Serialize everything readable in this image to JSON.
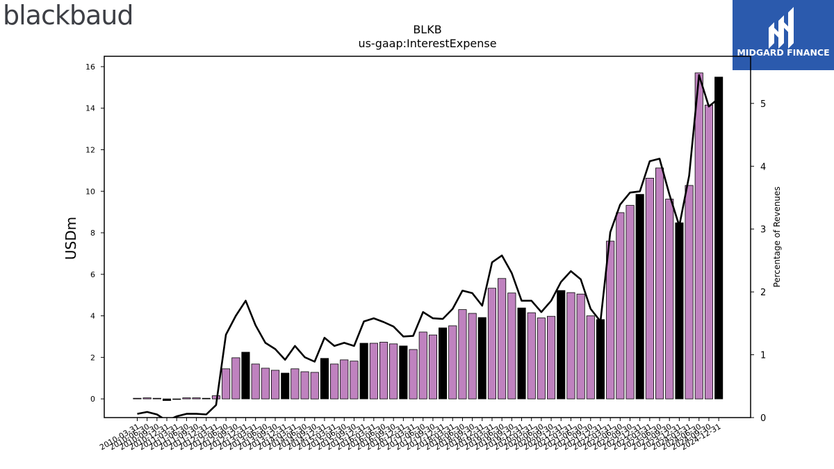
{
  "header": {
    "left_logo_text": "blackbaud",
    "right_logo_text": "MIDGARD FINANCE",
    "brand_color": "#2b5aad"
  },
  "chart_data": {
    "type": "bar",
    "title": "BLKB",
    "subtitle": "us-gaap:InterestExpense",
    "ylabel": "USDm",
    "y2label": "Percentage of Revenues",
    "ylim": [
      -0.9,
      16.5
    ],
    "y2lim": [
      0,
      5.75
    ],
    "yticks": [
      0,
      2,
      4,
      6,
      8,
      10,
      12,
      14,
      16
    ],
    "y2ticks": [
      0,
      1,
      2,
      3,
      4,
      5
    ],
    "colors": {
      "quarter_bar": "#bf82bf",
      "annual_bar": "#000000",
      "line": "#000000"
    },
    "categories": [
      "2010-03-31",
      "2010-06-30",
      "2010-09-30",
      "2010-12-31",
      "2011-03-31",
      "2011-06-30",
      "2011-09-30",
      "2011-12-31",
      "2012-03-31",
      "2012-06-30",
      "2012-09-30",
      "2012-12-31",
      "2013-03-31",
      "2013-06-30",
      "2013-09-30",
      "2013-12-31",
      "2014-03-31",
      "2014-06-30",
      "2014-09-30",
      "2014-12-31",
      "2015-03-31",
      "2015-06-30",
      "2015-09-30",
      "2015-12-31",
      "2016-03-31",
      "2016-06-30",
      "2016-09-30",
      "2016-12-31",
      "2017-03-31",
      "2017-06-30",
      "2017-09-30",
      "2017-12-31",
      "2018-03-31",
      "2018-06-30",
      "2018-09-30",
      "2018-12-31",
      "2019-03-31",
      "2019-06-30",
      "2019-09-30",
      "2019-12-31",
      "2020-03-31",
      "2020-06-30",
      "2020-09-30",
      "2020-12-31",
      "2021-03-31",
      "2021-06-30",
      "2021-09-30",
      "2021-12-31",
      "2022-03-31",
      "2022-06-30",
      "2022-09-30",
      "2022-12-31",
      "2023-03-31",
      "2023-06-30",
      "2023-09-30",
      "2023-12-31",
      "2024-03-31",
      "2024-06-30",
      "2024-09-30",
      "2024-12-31"
    ],
    "series": [
      {
        "kind": "bar",
        "axis": "left",
        "values": [
          0.03,
          0.05,
          0.03,
          -0.08,
          -0.02,
          0.05,
          0.05,
          0.03,
          0.15,
          1.45,
          1.98,
          2.25,
          1.68,
          1.48,
          1.38,
          1.24,
          1.45,
          1.31,
          1.28,
          1.95,
          1.68,
          1.88,
          1.82,
          2.68,
          2.68,
          2.73,
          2.65,
          2.55,
          2.38,
          3.22,
          3.08,
          3.42,
          3.52,
          4.3,
          4.12,
          3.92,
          5.33,
          5.8,
          5.1,
          4.38,
          4.15,
          3.9,
          3.98,
          5.22,
          5.12,
          5.05,
          4.0,
          3.82,
          7.6,
          8.97,
          9.32,
          9.85,
          10.63,
          11.12,
          9.62,
          8.48,
          10.28,
          15.7,
          14.15,
          15.5
        ],
        "annual": [
          false,
          false,
          false,
          true,
          false,
          false,
          false,
          true,
          false,
          false,
          false,
          true,
          false,
          false,
          false,
          true,
          false,
          false,
          false,
          true,
          false,
          false,
          false,
          true,
          false,
          false,
          false,
          true,
          false,
          false,
          false,
          true,
          false,
          false,
          false,
          true,
          false,
          false,
          false,
          true,
          false,
          false,
          false,
          true,
          false,
          false,
          false,
          true,
          false,
          false,
          false,
          true,
          false,
          false,
          false,
          true,
          false,
          false,
          false,
          true
        ]
      },
      {
        "kind": "line",
        "axis": "right",
        "values": [
          0.06,
          0.09,
          0.05,
          -0.05,
          0.02,
          0.06,
          0.06,
          0.05,
          0.2,
          1.32,
          1.62,
          1.86,
          1.47,
          1.19,
          1.09,
          0.92,
          1.14,
          0.96,
          0.89,
          1.27,
          1.14,
          1.19,
          1.14,
          1.53,
          1.58,
          1.52,
          1.45,
          1.29,
          1.3,
          1.68,
          1.58,
          1.57,
          1.73,
          2.02,
          1.98,
          1.78,
          2.47,
          2.58,
          2.3,
          1.86,
          1.86,
          1.68,
          1.86,
          2.16,
          2.33,
          2.2,
          1.73,
          1.53,
          2.95,
          3.39,
          3.58,
          3.6,
          4.08,
          4.12,
          3.55,
          3.05,
          3.85,
          5.45,
          4.95,
          5.08
        ]
      }
    ]
  }
}
